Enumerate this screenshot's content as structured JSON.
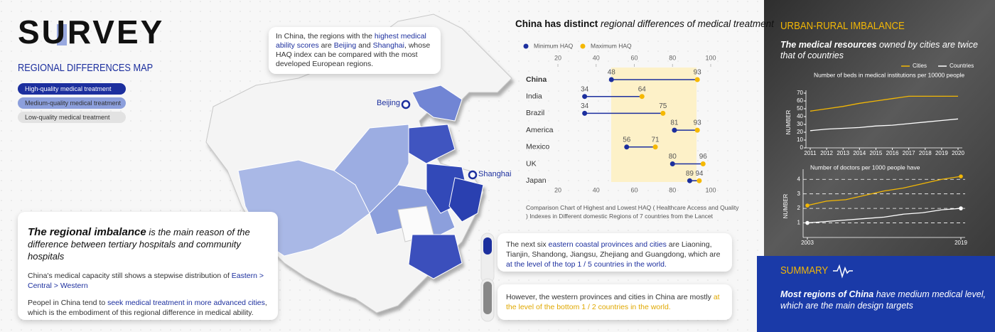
{
  "header": {
    "title": "SURVEY",
    "subtitle": "REGIONAL DIFFERENCES MAP"
  },
  "map_legend": [
    {
      "label": "High-quality medical treatment",
      "color": "#1c2f9e"
    },
    {
      "label": "Medium-quality medical treatment",
      "color": "#8c9fdc"
    },
    {
      "label": "Low-quality medical treatment",
      "color": "#e2e2e2"
    }
  ],
  "map_labels": [
    "Beijing",
    "Shanghai"
  ],
  "map_callout": [
    {
      "text": "In China, the regions with the "
    },
    {
      "text": "highest medical ability scores",
      "style": "blue"
    },
    {
      "text": " are "
    },
    {
      "text": "Beijing",
      "style": "blue"
    },
    {
      "text": " and "
    },
    {
      "text": "Shanghai",
      "style": "blue"
    },
    {
      "text": ", whose HAQ index can be compared with the most developed European regions."
    }
  ],
  "imbalance": {
    "heading": [
      {
        "text": "The regional imbalance",
        "style": "strong"
      },
      {
        "text": " is the main reason of the difference between tertiary hospitals and community hospitals",
        "style": "italic"
      }
    ],
    "paragraphs": [
      [
        {
          "text": "China's medical capacity still shows a stepwise distribution of "
        },
        {
          "text": "Eastern > Central > Western",
          "style": "blue"
        }
      ],
      [
        {
          "text": "Peopel in China tend to "
        },
        {
          "text": "seek medical treatment in more advanced cities",
          "style": "blue"
        },
        {
          "text": ", which is the embodiment of this regional difference in medical ability."
        }
      ]
    ]
  },
  "notes": [
    [
      {
        "text": "The next six "
      },
      {
        "text": "eastern coastal provinces and cities",
        "style": "blue"
      },
      {
        "text": " are Liaoning, Tianjin, Shandong, Jiangsu, Zhejiang and Guangdong, which are "
      },
      {
        "text": "at the level of the top 1 / 5 countries in the world.",
        "style": "blue"
      }
    ],
    [
      {
        "text": "However, the western provinces and cities in China are mostly "
      },
      {
        "text": "at the level of the bottom 1 / 2 countries in the world.",
        "style": "yellow"
      }
    ]
  ],
  "chart_data": [
    {
      "type": "dumbbell",
      "title": [
        {
          "text": "China has distinct",
          "style": "bold"
        },
        {
          "text": " regional differences of medical treatment",
          "style": "italic"
        }
      ],
      "categories": [
        "China",
        "India",
        "Brazil",
        "America",
        "Mexico",
        "UK",
        "Japan"
      ],
      "series": [
        {
          "name": "Minimum HAQ",
          "color": "#1c2f9e",
          "values": [
            48,
            34,
            34,
            81,
            56,
            80,
            89
          ]
        },
        {
          "name": "Maximum HAQ",
          "color": "#f5b800",
          "values": [
            93,
            64,
            75,
            93,
            71,
            96,
            94
          ]
        }
      ],
      "xlim": [
        20,
        100
      ],
      "xticks": [
        20,
        40,
        60,
        80,
        100
      ],
      "caption": "Comparison Chart of Highest and Lowest HAQ ( Healthcare Access and Quality ) Indexes in Different domestic Regions of 7 countries from the Lancet"
    },
    {
      "type": "line",
      "title": "Number of beds in medical institutions per 10000 people",
      "y_label": "NUMBER",
      "x": [
        2011,
        2012,
        2013,
        2014,
        2015,
        2016,
        2017,
        2018,
        2019,
        2020
      ],
      "xlim": [
        2011,
        2020
      ],
      "xticks": [
        2011,
        2012,
        2013,
        2014,
        2015,
        2016,
        2017,
        2018,
        2019,
        2020
      ],
      "ylim": [
        0,
        70
      ],
      "yticks": [
        0,
        10,
        20,
        30,
        40,
        50,
        60,
        70
      ],
      "series": [
        {
          "name": "Cities",
          "color": "#f2b705",
          "values": [
            47,
            50,
            53,
            57,
            60,
            63,
            66,
            66,
            66,
            66
          ]
        },
        {
          "name": "Countries",
          "color": "#ffffff",
          "values": [
            22,
            24,
            25,
            26,
            28,
            29,
            31,
            33,
            35,
            37
          ]
        }
      ],
      "legend": "top-right"
    },
    {
      "type": "line",
      "title": "Number of doctors  per 1000 people have",
      "y_label": "NUMBER",
      "x": [
        2003,
        2005,
        2007,
        2009,
        2011,
        2013,
        2015,
        2017,
        2019
      ],
      "xlim": [
        2003,
        2019
      ],
      "xticks": [
        2003,
        2019
      ],
      "ylim": [
        0,
        4.5
      ],
      "yticks": [
        1,
        2,
        3,
        4
      ],
      "grid": "dashed",
      "markers": "ends",
      "series": [
        {
          "name": "Cities",
          "color": "#f2b705",
          "values": [
            2.2,
            2.5,
            2.6,
            2.9,
            3.2,
            3.4,
            3.7,
            4.0,
            4.2
          ]
        },
        {
          "name": "Countries",
          "color": "#ffffff",
          "values": [
            1.0,
            1.1,
            1.2,
            1.3,
            1.4,
            1.6,
            1.7,
            1.9,
            2.0
          ]
        }
      ]
    }
  ],
  "right_panel": {
    "title": "URBAN-RURAL IMBALANCE",
    "subtitle": [
      {
        "text": "The medical resources",
        "style": "bold"
      },
      {
        "text": " owned by cities are twice that of countries"
      }
    ]
  },
  "summary": {
    "title": "SUMMARY",
    "text": [
      {
        "text": "Most regions of China",
        "style": "bold"
      },
      {
        "text": " have medium medical level, which are the main design targets"
      }
    ]
  }
}
